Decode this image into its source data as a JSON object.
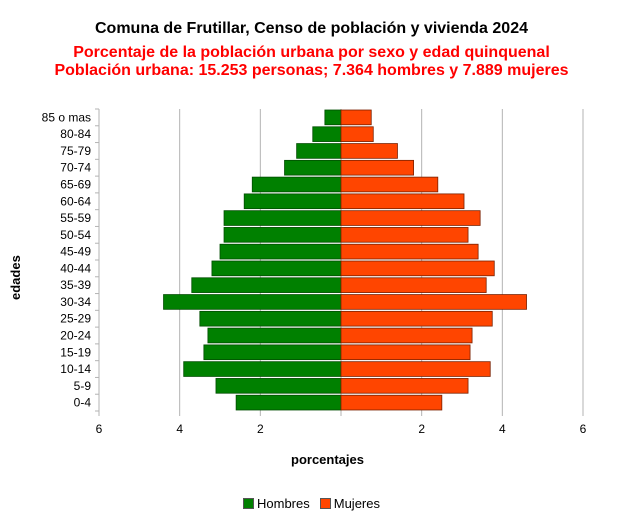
{
  "chart_data": {
    "type": "bar",
    "orientation": "horizontal",
    "title": "Comuna de Frutillar, Censo de población y vivienda 2024",
    "subtitle_1": "Porcentaje de la población urbana por sexo y edad quinquenal",
    "subtitle_2": "Población urbana: 15.253 personas; 7.364 hombres y 7.889 mujeres",
    "xlabel": "porcentajes",
    "ylabel": "edades",
    "xlim": [
      -6,
      6
    ],
    "x_ticks": [
      {
        "value": -6,
        "label": "6"
      },
      {
        "value": -4,
        "label": "4"
      },
      {
        "value": -2,
        "label": "2"
      },
      {
        "value": 2,
        "label": "2"
      },
      {
        "value": 4,
        "label": "4"
      },
      {
        "value": 6,
        "label": "6"
      }
    ],
    "grid": "vertical",
    "legend_position": "bottom",
    "categories": [
      "0-4",
      "5-9",
      "10-14",
      "15-19",
      "20-24",
      "25-29",
      "30-34",
      "35-39",
      "40-44",
      "45-49",
      "50-54",
      "55-59",
      "60-64",
      "65-69",
      "70-74",
      "75-79",
      "80-84",
      "85 o mas"
    ],
    "series": [
      {
        "name": "Hombres",
        "color": "#008000",
        "values": [
          2.6,
          3.1,
          3.9,
          3.4,
          3.3,
          3.5,
          4.4,
          3.7,
          3.2,
          3.0,
          2.9,
          2.9,
          2.4,
          2.2,
          1.4,
          1.1,
          0.7,
          0.4
        ]
      },
      {
        "name": "Mujeres",
        "color": "#ff4500",
        "values": [
          2.5,
          3.15,
          3.7,
          3.2,
          3.25,
          3.75,
          4.6,
          3.6,
          3.8,
          3.4,
          3.15,
          3.45,
          3.05,
          2.4,
          1.8,
          1.4,
          0.8,
          0.75
        ]
      }
    ]
  }
}
